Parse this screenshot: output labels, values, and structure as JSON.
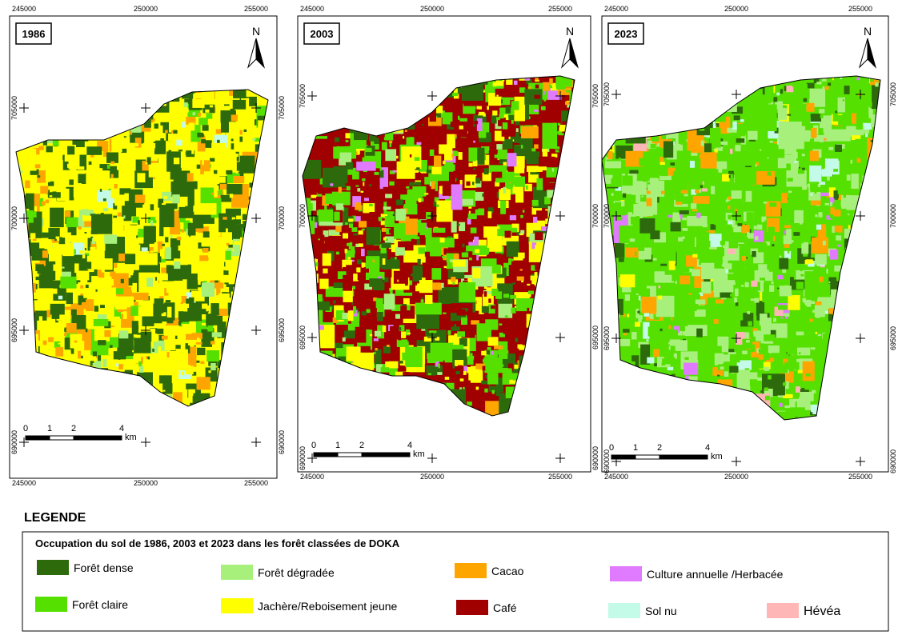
{
  "maps": [
    {
      "year": "1986"
    },
    {
      "year": "2003"
    },
    {
      "year": "2023"
    }
  ],
  "grid": {
    "x_labels": [
      "245000",
      "250000",
      "255000"
    ],
    "y_labels": [
      "705000",
      "700000",
      "695000",
      "690000"
    ]
  },
  "scale_bar": {
    "ticks": [
      "0",
      "1",
      "2",
      "4"
    ],
    "unit": "km"
  },
  "north_label": "N",
  "legend": {
    "heading": "LEGENDE",
    "title": "Occupation du sol de 1986, 2003 et 2023 dans les forêt classées de DOKA",
    "items": [
      {
        "label": "Forêt dense",
        "color": "#2d6a0c"
      },
      {
        "label": "Forêt claire",
        "color": "#55e000"
      },
      {
        "label": "Forêt dégradée",
        "color": "#a8f07c"
      },
      {
        "label": "Jachère/Reboisement jeune",
        "color": "#ffff00"
      },
      {
        "label": "Cacao",
        "color": "#ffa500"
      },
      {
        "label": "Café",
        "color": "#a00000"
      },
      {
        "label": "Culture annuelle /Herbacée",
        "color": "#e07aff"
      },
      {
        "label": "Sol nu",
        "color": "#c4fbe8"
      },
      {
        "label": "Hévéa",
        "color": "#ffb6b6"
      }
    ]
  }
}
